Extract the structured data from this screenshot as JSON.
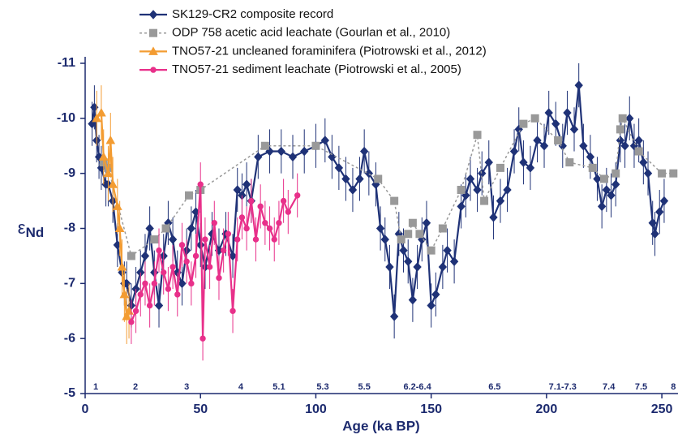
{
  "chart_data": {
    "type": "line",
    "x_label": "Age (ka BP)",
    "y_label": "ε",
    "y_label_sub": "Nd",
    "xlim": [
      0,
      257
    ],
    "xticks": [
      0,
      50,
      100,
      150,
      200,
      250
    ],
    "ylim": [
      -5,
      -11
    ],
    "yticks": [
      -5,
      -6,
      -7,
      -8,
      -9,
      -10,
      -11
    ],
    "annotations": [
      {
        "x": 4.6,
        "text": "1"
      },
      {
        "x": 21.8,
        "text": "2"
      },
      {
        "x": 44,
        "text": "3"
      },
      {
        "x": 67.5,
        "text": "4"
      },
      {
        "x": 84,
        "text": "5.1"
      },
      {
        "x": 103,
        "text": "5.3"
      },
      {
        "x": 121,
        "text": "5.5"
      },
      {
        "x": 144,
        "text": "6.2-6.4"
      },
      {
        "x": 177.5,
        "text": "6.5"
      },
      {
        "x": 207,
        "text": "7.1-7.3"
      },
      {
        "x": 227,
        "text": "7.4"
      },
      {
        "x": 241,
        "text": "7.5"
      },
      {
        "x": 255,
        "text": "8"
      }
    ],
    "series": [
      {
        "name": "SK129-CR2 composite record",
        "color": "#1f3277",
        "marker": "diamond",
        "line": "solid",
        "error": 0.4,
        "x": [
          3,
          4,
          5,
          6,
          7,
          9,
          10,
          12,
          14,
          16,
          17,
          18,
          20,
          22,
          24,
          26,
          28,
          30,
          32,
          34,
          36,
          38,
          40,
          42,
          44,
          46,
          48,
          50,
          52,
          55,
          58,
          61,
          64,
          66,
          68,
          70,
          72,
          75,
          80,
          85,
          90,
          95,
          100,
          104,
          107,
          110,
          113,
          116,
          119,
          121,
          123,
          126,
          128,
          130,
          132,
          134,
          136,
          138,
          140,
          142,
          144,
          146,
          148,
          150,
          152,
          155,
          157,
          160,
          163,
          165,
          167,
          170,
          172,
          175,
          177,
          180,
          183,
          186,
          188,
          190,
          193,
          196,
          199,
          201,
          204,
          207,
          209,
          212,
          214,
          216,
          219,
          222,
          224,
          226,
          228,
          230,
          232,
          234,
          236,
          238,
          240,
          242,
          244,
          246,
          247,
          249,
          251
        ],
        "values": [
          -9.9,
          -10.2,
          -9.6,
          -9.3,
          -9.1,
          -8.8,
          -8.8,
          -8.5,
          -7.7,
          -7.2,
          -7.0,
          -7.0,
          -6.6,
          -6.9,
          -7.2,
          -7.5,
          -8.0,
          -7.2,
          -6.6,
          -7.5,
          -8.1,
          -7.8,
          -7.2,
          -7.0,
          -7.6,
          -8.0,
          -8.3,
          -7.7,
          -7.3,
          -7.9,
          -7.6,
          -7.9,
          -7.5,
          -8.7,
          -8.6,
          -8.8,
          -8.5,
          -9.3,
          -9.4,
          -9.4,
          -9.3,
          -9.4,
          -9.5,
          -9.6,
          -9.3,
          -9.1,
          -8.9,
          -8.7,
          -8.9,
          -9.4,
          -9.0,
          -8.8,
          -8.0,
          -7.8,
          -7.3,
          -6.4,
          -7.9,
          -7.6,
          -7.4,
          -6.7,
          -7.3,
          -7.8,
          -8.1,
          -6.6,
          -6.8,
          -7.3,
          -7.6,
          -7.4,
          -8.4,
          -8.6,
          -8.9,
          -8.7,
          -9.0,
          -9.2,
          -8.2,
          -8.5,
          -8.7,
          -9.4,
          -9.8,
          -9.2,
          -9.1,
          -9.6,
          -9.5,
          -10.1,
          -9.9,
          -9.5,
          -10.1,
          -9.8,
          -10.6,
          -9.5,
          -9.3,
          -8.9,
          -8.4,
          -8.7,
          -8.6,
          -8.8,
          -9.6,
          -9.5,
          -10.0,
          -9.5,
          -9.6,
          -9.2,
          -9.0,
          -8.1,
          -7.9,
          -8.3,
          -8.5
        ]
      },
      {
        "name": "ODP 758 acetic acid leachate (Gourlan et al., 2010)",
        "color": "#999999",
        "marker": "square",
        "line": "dashed",
        "x": [
          8,
          10,
          20,
          30,
          35,
          45,
          50,
          78,
          100,
          127,
          134,
          137,
          140,
          142,
          145,
          150,
          155,
          163,
          170,
          173,
          180,
          190,
          195,
          205,
          210,
          220,
          225,
          230,
          232,
          233,
          240,
          250,
          255
        ],
        "values": [
          -9.2,
          -9.1,
          -7.5,
          -7.8,
          -8.0,
          -8.6,
          -8.7,
          -9.5,
          -9.5,
          -8.9,
          -8.5,
          -7.8,
          -7.9,
          -8.1,
          -7.9,
          -7.6,
          -8.0,
          -8.7,
          -9.7,
          -8.5,
          -9.1,
          -9.9,
          -10.0,
          -9.6,
          -9.2,
          -9.1,
          -8.9,
          -9.0,
          -9.8,
          -10.0,
          -9.4,
          -9.0,
          -9.0
        ]
      },
      {
        "name": "TNO57-21 uncleaned foraminifera (Piotrowski et al., 2012)",
        "color": "#f39c32",
        "marker": "triangle",
        "line": "solid",
        "error": 0.5,
        "x": [
          5,
          7,
          8,
          10,
          11,
          12,
          14,
          15,
          16,
          17,
          18,
          19
        ],
        "values": [
          -10.0,
          -10.1,
          -9.3,
          -9.0,
          -9.6,
          -8.8,
          -8.4,
          -8.0,
          -7.3,
          -6.8,
          -6.4,
          -6.5
        ]
      },
      {
        "name": "TNO57-21 sediment leachate (Piotrowski et al., 2005)",
        "color": "#e8308a",
        "marker": "circle",
        "line": "solid",
        "error": 0.4,
        "x": [
          20,
          22,
          24,
          26,
          28,
          30,
          32,
          34,
          36,
          38,
          40,
          42,
          44,
          46,
          48,
          50,
          51,
          52,
          54,
          56,
          58,
          60,
          62,
          64,
          66,
          68,
          70,
          72,
          74,
          76,
          78,
          80,
          82,
          84,
          86,
          88,
          92
        ],
        "values": [
          -6.3,
          -6.5,
          -6.8,
          -7.0,
          -6.6,
          -7.0,
          -7.6,
          -7.2,
          -6.9,
          -7.3,
          -6.8,
          -7.7,
          -7.4,
          -7.0,
          -7.5,
          -8.8,
          -6.0,
          -7.8,
          -7.3,
          -8.1,
          -7.1,
          -7.6,
          -7.9,
          -6.5,
          -7.8,
          -8.2,
          -8.0,
          -8.5,
          -7.8,
          -8.4,
          -8.1,
          -8.0,
          -7.8,
          -8.1,
          -8.5,
          -8.3,
          -8.6
        ]
      }
    ]
  }
}
